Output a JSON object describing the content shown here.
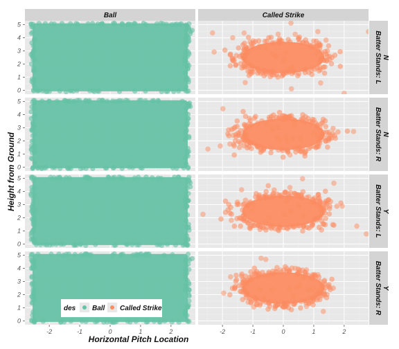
{
  "chart_data": {
    "type": "scatter",
    "title": "",
    "xlabel": "Horizontal Pitch Location",
    "ylabel": "Height from Ground",
    "xlim": [
      -2.8,
      2.8
    ],
    "ylim": [
      -0.3,
      5.3
    ],
    "x_ticks": [
      -2,
      -1,
      0,
      1,
      2
    ],
    "x_tick_labels": [
      "-2",
      "-1",
      "0",
      "1",
      "2"
    ],
    "y_ticks": [
      0,
      1,
      2,
      3,
      4,
      5
    ],
    "y_tick_labels": [
      "0",
      "1",
      "2",
      "3",
      "4",
      "5"
    ],
    "grid": true,
    "facet_columns": [
      "Ball",
      "Called Strike"
    ],
    "facet_rows": [
      "Batter Stands: L\nN",
      "Batter Stands: R\nN",
      "Batter Stands: L\nY",
      "Batter Stands: R\nY"
    ],
    "legend": {
      "title": "des",
      "position": "bottom-left inside",
      "entries": [
        {
          "label": "Ball",
          "color": "#66c2a5"
        },
        {
          "label": "Called Strike",
          "color": "#fc8d62"
        }
      ]
    },
    "series": [
      {
        "name": "Ball",
        "color": "#66c2a5",
        "description": "dense filled region covering approximately x from -2.5 to 2.5 and y from 0 to 5 in every row"
      },
      {
        "name": "Called Strike",
        "color": "#fc8d62",
        "description": "dense elliptical cluster centred near x=0, y=2.5, spanning roughly x -1.8 to 1.8 and y 1 to 4"
      }
    ]
  }
}
